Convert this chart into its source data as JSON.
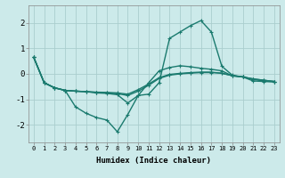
{
  "xlabel": "Humidex (Indice chaleur)",
  "background_color": "#cceaea",
  "grid_color": "#aacece",
  "line_color": "#1a7a6e",
  "ylim": [
    -2.7,
    2.7
  ],
  "xlim": [
    -0.5,
    23.5
  ],
  "yticks": [
    -2,
    -1,
    0,
    1,
    2
  ],
  "xticks": [
    0,
    1,
    2,
    3,
    4,
    5,
    6,
    7,
    8,
    9,
    10,
    11,
    12,
    13,
    14,
    15,
    16,
    17,
    18,
    19,
    20,
    21,
    22,
    23
  ],
  "lines": [
    [
      0.65,
      -0.35,
      -0.55,
      -0.65,
      -1.3,
      -1.55,
      -1.72,
      -1.82,
      -2.28,
      -1.6,
      -0.85,
      -0.8,
      -0.35,
      1.4,
      1.65,
      1.9,
      2.1,
      1.65,
      0.3,
      -0.05,
      -0.12,
      -0.28,
      -0.3,
      -0.32
    ],
    [
      0.65,
      -0.35,
      -0.55,
      -0.65,
      -0.68,
      -0.7,
      -0.75,
      -0.77,
      -0.82,
      -1.15,
      -0.85,
      -0.35,
      0.12,
      0.25,
      0.32,
      0.28,
      0.22,
      0.18,
      0.12,
      -0.08,
      -0.12,
      -0.22,
      -0.28,
      -0.3
    ],
    [
      0.65,
      -0.35,
      -0.55,
      -0.65,
      -0.68,
      -0.7,
      -0.73,
      -0.75,
      -0.78,
      -0.85,
      -0.68,
      -0.45,
      -0.18,
      -0.05,
      0.0,
      0.03,
      0.05,
      0.05,
      0.03,
      -0.07,
      -0.12,
      -0.2,
      -0.25,
      -0.3
    ],
    [
      0.65,
      -0.35,
      -0.55,
      -0.65,
      -0.68,
      -0.7,
      -0.72,
      -0.73,
      -0.75,
      -0.8,
      -0.62,
      -0.4,
      -0.15,
      -0.02,
      0.02,
      0.05,
      0.07,
      0.07,
      0.02,
      -0.07,
      -0.12,
      -0.2,
      -0.25,
      -0.3
    ]
  ],
  "marker": "+",
  "markersize": 3.5,
  "linewidth": 1.0
}
